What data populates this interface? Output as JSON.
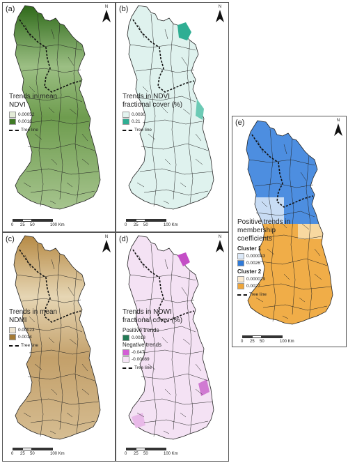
{
  "panels": {
    "a": {
      "label": "(a)",
      "legend_title": "Trends in mean NDVI",
      "values": [
        "0.00052",
        "0.0016"
      ],
      "colors": [
        "#e4ecd8",
        "#3f7a24"
      ],
      "tree_line": "Tree line"
    },
    "b": {
      "label": "(b)",
      "legend_title": "Trends in NDVI fractional cover (%)",
      "values": [
        "0.0030",
        "0.21"
      ],
      "colors": [
        "#e4f4f0",
        "#2fae93"
      ],
      "tree_line": "Tree line"
    },
    "c": {
      "label": "(c)",
      "legend_title": "Trends in mean NDMI",
      "values": [
        "0.00023",
        "0.0014"
      ],
      "colors": [
        "#efe6d2",
        "#a57b35"
      ],
      "tree_line": "Tree line"
    },
    "d": {
      "label": "(d)",
      "legend_title": "Trends in NDWI fractional cover (%)",
      "positive_label": "Positive trends",
      "positive_value": "0.0018",
      "positive_color": "#237a55",
      "negative_label": "Negative trends",
      "negative_values": [
        "-0.047",
        "-0.00089"
      ],
      "negative_colors": [
        "#d45ed6",
        "#f6e4f6"
      ],
      "tree_line": "Tree line"
    },
    "e": {
      "label": "(e)",
      "legend_title": "Positive trends in membership coefficients",
      "cluster1_label": "Cluster 1",
      "cluster1_values": [
        "0.000043",
        "0.0026"
      ],
      "cluster1_colors": [
        "#dce9f8",
        "#2f7ad8"
      ],
      "cluster2_label": "Cluster 2",
      "cluster2_values": [
        "0.000029",
        "0.0027"
      ],
      "cluster2_colors": [
        "#fbead0",
        "#eea53a"
      ],
      "tree_line": "Tree line"
    }
  },
  "scale": {
    "ticks": [
      "0",
      "25",
      "50",
      "100 Km"
    ]
  },
  "north_label": "N"
}
